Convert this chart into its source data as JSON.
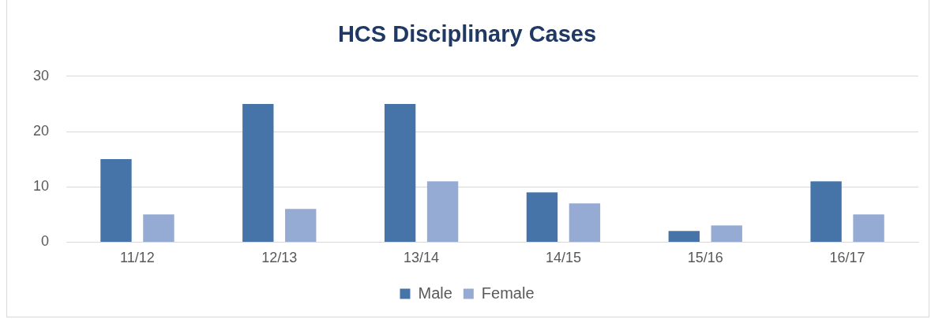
{
  "chart_data": {
    "type": "bar",
    "title": "HCS Disciplinary Cases",
    "categories": [
      "11/12",
      "12/13",
      "13/14",
      "14/15",
      "15/16",
      "16/17"
    ],
    "series": [
      {
        "name": "Male",
        "color": "#4674a9",
        "values": [
          15,
          25,
          25,
          9,
          2,
          11
        ]
      },
      {
        "name": "Female",
        "color": "#95abd4",
        "values": [
          5,
          6,
          11,
          7,
          3,
          5
        ]
      }
    ],
    "ylim": [
      0,
      30
    ],
    "yticks": [
      0,
      10,
      20,
      30
    ],
    "grid": "y",
    "legend": "bottom"
  }
}
